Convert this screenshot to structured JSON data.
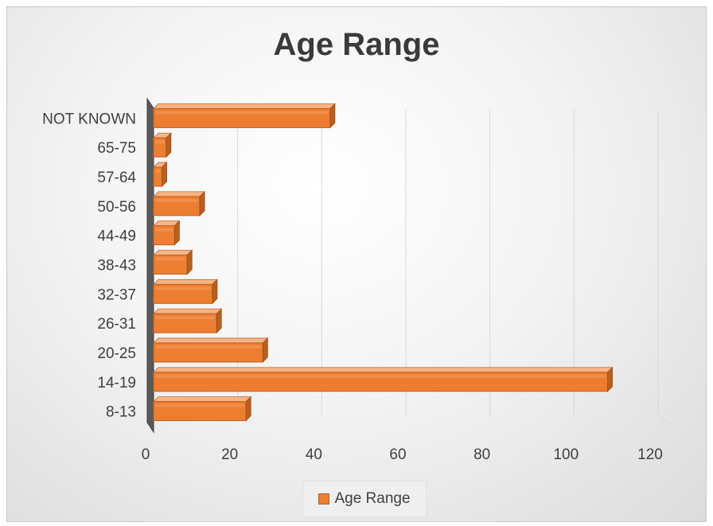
{
  "chart_data": {
    "type": "bar",
    "orientation": "horizontal",
    "title": "Age Range",
    "categories": [
      "8-13",
      "14-19",
      "20-25",
      "26-31",
      "32-37",
      "38-43",
      "44-49",
      "50-56",
      "57-64",
      "65-75",
      "NOT KNOWN"
    ],
    "series": [
      {
        "name": "Age Range",
        "values": [
          22,
          108,
          26,
          15,
          14,
          8,
          5,
          11,
          2,
          3,
          42
        ]
      }
    ],
    "xlim": [
      0,
      120
    ],
    "xticks": [
      0,
      20,
      40,
      60,
      80,
      100,
      120
    ],
    "grid": true,
    "legend": "bottom",
    "bar_color": "#ed7d31",
    "bar_edge_color": "#b85c1d"
  }
}
